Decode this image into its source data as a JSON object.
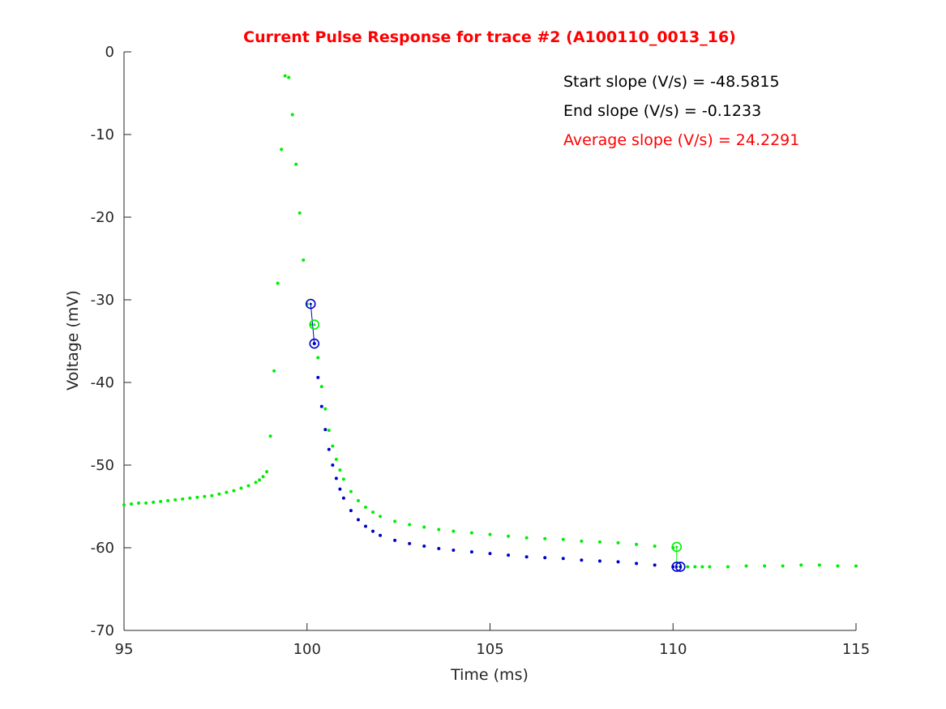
{
  "chart_data": {
    "type": "scatter",
    "title": "Current Pulse Response for trace #2 (A100110_0013_16)",
    "xlabel": "Time (ms)",
    "ylabel": "Voltage (mV)",
    "xlim": [
      95,
      115
    ],
    "ylim": [
      -70,
      0
    ],
    "xticks": [
      95,
      100,
      105,
      110,
      115
    ],
    "yticks": [
      0,
      -10,
      -20,
      -30,
      -40,
      -50,
      -60,
      -70
    ],
    "annotations": [
      {
        "text": "Start slope (V/s) = -48.5815",
        "color": "#000000"
      },
      {
        "text": "End slope (V/s) = -0.1233",
        "color": "#000000"
      },
      {
        "text": "Average slope (V/s) = 24.2291",
        "color": "#ff0000"
      }
    ],
    "colors": {
      "green": "#00ee00",
      "blue": "#0000cc",
      "title": "#ff0000"
    },
    "series": [
      {
        "color": "#00ee00",
        "role": "raw trace",
        "x": [
          95.0,
          95.2,
          95.4,
          95.6,
          95.8,
          96.0,
          96.2,
          96.4,
          96.6,
          96.8,
          97.0,
          97.2,
          97.4,
          97.6,
          97.8,
          98.0,
          98.2,
          98.4,
          98.6,
          98.7,
          98.8,
          98.9,
          99.0,
          99.1,
          99.2,
          99.3,
          99.4,
          99.5,
          99.6,
          99.7,
          99.8,
          99.9,
          100.0,
          100.1,
          100.2,
          100.3,
          100.4,
          100.5,
          100.6,
          100.7,
          100.8,
          100.9,
          101.0,
          101.2,
          101.4,
          101.6,
          101.8,
          102.0,
          102.4,
          102.8,
          103.2,
          103.6,
          104.0,
          104.5,
          105.0,
          105.5,
          106.0,
          106.5,
          107.0,
          107.5,
          108.0,
          108.5,
          109.0,
          109.5,
          110.0,
          110.2,
          110.4,
          110.6,
          110.8,
          111.0,
          111.5,
          112.0,
          112.5,
          113.0,
          113.5,
          114.0,
          114.5,
          115.0
        ],
        "y": [
          -54.8,
          -54.7,
          -54.6,
          -54.6,
          -54.5,
          -54.4,
          -54.3,
          -54.2,
          -54.1,
          -54.0,
          -53.9,
          -53.8,
          -53.7,
          -53.5,
          -53.3,
          -53.1,
          -52.8,
          -52.5,
          -52.1,
          -51.8,
          -51.4,
          -50.8,
          -46.5,
          -38.6,
          -28.0,
          -11.8,
          -2.9,
          -3.1,
          -7.6,
          -13.6,
          -19.5,
          -25.2,
          -30.5,
          -33.0,
          -35.3,
          -37.0,
          -40.5,
          -43.2,
          -45.8,
          -47.7,
          -49.3,
          -50.6,
          -51.7,
          -53.2,
          -54.3,
          -55.1,
          -55.7,
          -56.2,
          -56.8,
          -57.2,
          -57.5,
          -57.8,
          -58.0,
          -58.2,
          -58.4,
          -58.6,
          -58.8,
          -58.9,
          -59.0,
          -59.2,
          -59.3,
          -59.4,
          -59.6,
          -59.8,
          -60.0,
          -62.3,
          -62.3,
          -62.3,
          -62.3,
          -62.3,
          -62.3,
          -62.2,
          -62.2,
          -62.2,
          -62.1,
          -62.1,
          -62.2,
          -62.2
        ]
      },
      {
        "color": "#0000cc",
        "role": "baseline-corrected trace",
        "x": [
          100.2,
          100.3,
          100.4,
          100.5,
          100.6,
          100.7,
          100.8,
          100.9,
          101.0,
          101.2,
          101.4,
          101.6,
          101.8,
          102.0,
          102.4,
          102.8,
          103.2,
          103.6,
          104.0,
          104.5,
          105.0,
          105.5,
          106.0,
          106.5,
          107.0,
          107.5,
          108.0,
          108.5,
          109.0,
          109.5,
          110.0
        ],
        "y": [
          -35.3,
          -39.4,
          -42.9,
          -45.7,
          -48.1,
          -50.0,
          -51.6,
          -52.9,
          -54.0,
          -55.5,
          -56.6,
          -57.4,
          -58.0,
          -58.5,
          -59.1,
          -59.5,
          -59.8,
          -60.1,
          -60.3,
          -60.5,
          -60.7,
          -60.9,
          -61.1,
          -61.2,
          -61.3,
          -61.5,
          -61.6,
          -61.7,
          -61.9,
          -62.1,
          -62.3
        ]
      }
    ],
    "markers": [
      {
        "color": "#0000cc",
        "x": 100.1,
        "y": -30.5
      },
      {
        "color": "#00ee00",
        "x": 100.2,
        "y": -33.0
      },
      {
        "color": "#0000cc",
        "x": 100.2,
        "y": -35.3
      },
      {
        "color": "#00ee00",
        "x": 110.1,
        "y": -59.9
      },
      {
        "color": "#0000cc",
        "x": 110.1,
        "y": -62.3
      },
      {
        "color": "#0000cc",
        "x": 110.2,
        "y": -62.3
      }
    ],
    "segments": [
      {
        "color": "#0000cc",
        "x": [
          100.1,
          100.2
        ],
        "y": [
          -30.5,
          -35.3
        ]
      },
      {
        "color": "#00ee00",
        "x": [
          110.1,
          110.1
        ],
        "y": [
          -59.9,
          -62.3
        ]
      }
    ]
  }
}
